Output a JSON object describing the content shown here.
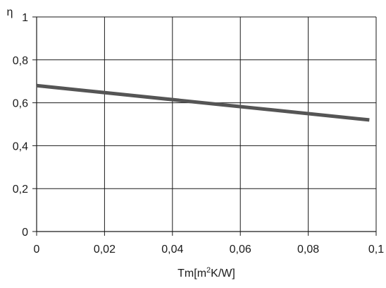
{
  "chart_data": {
    "type": "line",
    "title": "",
    "xlabel_main": "Tm[m",
    "xlabel_sup": "2",
    "xlabel_tail": "K/W]",
    "ylabel": "η",
    "xlim": [
      0,
      0.1
    ],
    "ylim": [
      0,
      1
    ],
    "x_ticks": [
      0,
      0.02,
      0.04,
      0.06,
      0.08,
      0.1
    ],
    "x_tick_labels": [
      "0",
      "0,02",
      "0,04",
      "0,06",
      "0,08",
      "0,1"
    ],
    "y_ticks": [
      0,
      0.2,
      0.4,
      0.6,
      0.8,
      1
    ],
    "y_tick_labels": [
      "0",
      "0,2",
      "0,4",
      "0,6",
      "0,8",
      "1"
    ],
    "grid": true,
    "series": [
      {
        "x": [
          0,
          0.098
        ],
        "y": [
          0.68,
          0.52
        ],
        "color": "#555555"
      }
    ]
  }
}
